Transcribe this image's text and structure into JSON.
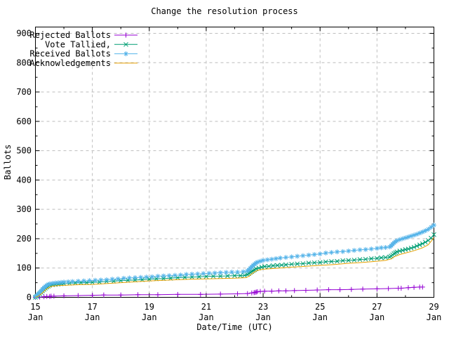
{
  "chart_data": {
    "type": "line",
    "title": "Change the resolution process",
    "xlabel": "Date/Time (UTC)",
    "ylabel": "Ballots",
    "xlim": [
      15,
      29
    ],
    "ylim": [
      0,
      900
    ],
    "grid": true,
    "legend_position": "top-left-inside",
    "grid_color": "#bebebe",
    "axis_color": "#000000",
    "background_color": "#ffffff",
    "x_major_ticks": [
      {
        "x": 15,
        "line1": "15",
        "line2": "Jan"
      },
      {
        "x": 17,
        "line1": "17",
        "line2": "Jan"
      },
      {
        "x": 19,
        "line1": "19",
        "line2": "Jan"
      },
      {
        "x": 21,
        "line1": "21",
        "line2": "Jan"
      },
      {
        "x": 23,
        "line1": "23",
        "line2": "Jan"
      },
      {
        "x": 25,
        "line1": "25",
        "line2": "Jan"
      },
      {
        "x": 27,
        "line1": "27",
        "line2": "Jan"
      },
      {
        "x": 29,
        "line1": "29",
        "line2": "Jan"
      }
    ],
    "x_minor_ticks": [
      16,
      18,
      20,
      22,
      24,
      26,
      28
    ],
    "y_major_ticks": [
      0,
      100,
      200,
      300,
      400,
      500,
      600,
      700,
      800,
      900
    ],
    "y_minor_ticks": [
      50,
      150,
      250,
      350,
      450,
      550,
      650,
      750,
      850
    ],
    "series": [
      {
        "name": "Rejected Ballots",
        "color": "#9400d3",
        "marker": "plus",
        "points": [
          [
            15.0,
            0
          ],
          [
            15.15,
            1
          ],
          [
            15.3,
            2
          ],
          [
            15.4,
            3
          ],
          [
            15.5,
            3
          ],
          [
            15.55,
            4
          ],
          [
            15.65,
            4
          ],
          [
            16.0,
            5
          ],
          [
            16.5,
            6
          ],
          [
            17.0,
            7
          ],
          [
            17.4,
            8
          ],
          [
            18.0,
            8
          ],
          [
            18.6,
            9
          ],
          [
            19.3,
            9
          ],
          [
            20.0,
            10
          ],
          [
            20.8,
            10
          ],
          [
            21.5,
            11
          ],
          [
            22.1,
            12
          ],
          [
            22.45,
            13
          ],
          [
            22.6,
            15
          ],
          [
            22.68,
            16
          ],
          [
            22.72,
            17
          ],
          [
            22.76,
            18
          ],
          [
            22.8,
            19
          ],
          [
            22.9,
            20
          ],
          [
            23.05,
            21
          ],
          [
            23.3,
            21
          ],
          [
            23.55,
            22
          ],
          [
            23.8,
            22
          ],
          [
            24.1,
            23
          ],
          [
            24.5,
            24
          ],
          [
            24.9,
            25
          ],
          [
            25.3,
            26
          ],
          [
            25.7,
            26
          ],
          [
            26.1,
            27
          ],
          [
            26.5,
            28
          ],
          [
            27.0,
            29
          ],
          [
            27.4,
            30
          ],
          [
            27.75,
            31
          ],
          [
            27.85,
            31
          ],
          [
            28.1,
            33
          ],
          [
            28.3,
            34
          ],
          [
            28.5,
            35
          ],
          [
            28.6,
            35
          ]
        ]
      },
      {
        "name": "Vote Tallied,",
        "color": "#009e73",
        "marker": "cross",
        "points": [
          [
            15.0,
            0
          ],
          [
            15.05,
            3
          ],
          [
            15.1,
            7
          ],
          [
            15.15,
            12
          ],
          [
            15.2,
            17
          ],
          [
            15.25,
            22
          ],
          [
            15.3,
            27
          ],
          [
            15.35,
            31
          ],
          [
            15.4,
            35
          ],
          [
            15.45,
            38
          ],
          [
            15.5,
            41
          ],
          [
            15.6,
            43
          ],
          [
            15.7,
            44
          ],
          [
            15.8,
            45
          ],
          [
            15.9,
            46
          ],
          [
            16.0,
            47
          ],
          [
            16.2,
            48
          ],
          [
            16.4,
            49
          ],
          [
            16.6,
            50
          ],
          [
            16.8,
            50
          ],
          [
            17.0,
            51
          ],
          [
            17.25,
            52
          ],
          [
            17.5,
            54
          ],
          [
            17.75,
            55
          ],
          [
            18.0,
            57
          ],
          [
            18.25,
            58
          ],
          [
            18.5,
            59
          ],
          [
            18.75,
            60
          ],
          [
            19.0,
            62
          ],
          [
            19.25,
            63
          ],
          [
            19.5,
            64
          ],
          [
            19.75,
            65
          ],
          [
            20.0,
            67
          ],
          [
            20.25,
            68
          ],
          [
            20.5,
            69
          ],
          [
            20.75,
            70
          ],
          [
            21.0,
            71
          ],
          [
            21.25,
            72
          ],
          [
            21.5,
            72
          ],
          [
            21.75,
            73
          ],
          [
            22.0,
            74
          ],
          [
            22.2,
            74
          ],
          [
            22.35,
            75
          ],
          [
            22.45,
            78
          ],
          [
            22.5,
            81
          ],
          [
            22.55,
            85
          ],
          [
            22.6,
            88
          ],
          [
            22.65,
            91
          ],
          [
            22.7,
            94
          ],
          [
            22.75,
            97
          ],
          [
            22.85,
            100
          ],
          [
            22.95,
            103
          ],
          [
            23.05,
            105
          ],
          [
            23.2,
            106
          ],
          [
            23.35,
            108
          ],
          [
            23.5,
            109
          ],
          [
            23.65,
            110
          ],
          [
            23.8,
            111
          ],
          [
            24.0,
            113
          ],
          [
            24.2,
            114
          ],
          [
            24.4,
            115
          ],
          [
            24.6,
            117
          ],
          [
            24.8,
            118
          ],
          [
            25.0,
            119
          ],
          [
            25.2,
            121
          ],
          [
            25.4,
            122
          ],
          [
            25.6,
            123
          ],
          [
            25.8,
            125
          ],
          [
            26.0,
            126
          ],
          [
            26.2,
            127
          ],
          [
            26.4,
            129
          ],
          [
            26.6,
            130
          ],
          [
            26.8,
            132
          ],
          [
            27.0,
            133
          ],
          [
            27.15,
            135
          ],
          [
            27.3,
            136
          ],
          [
            27.45,
            138
          ],
          [
            27.5,
            141
          ],
          [
            27.55,
            145
          ],
          [
            27.6,
            149
          ],
          [
            27.65,
            152
          ],
          [
            27.7,
            155
          ],
          [
            27.8,
            158
          ],
          [
            27.9,
            160
          ],
          [
            28.0,
            163
          ],
          [
            28.1,
            165
          ],
          [
            28.2,
            168
          ],
          [
            28.3,
            171
          ],
          [
            28.4,
            175
          ],
          [
            28.5,
            179
          ],
          [
            28.6,
            183
          ],
          [
            28.7,
            188
          ],
          [
            28.8,
            194
          ],
          [
            28.9,
            202
          ],
          [
            29.0,
            214
          ]
        ]
      },
      {
        "name": "Received Ballots",
        "color": "#56b4e9",
        "marker": "asterisk",
        "points": [
          [
            15.0,
            2
          ],
          [
            15.05,
            6
          ],
          [
            15.1,
            11
          ],
          [
            15.15,
            16
          ],
          [
            15.2,
            22
          ],
          [
            15.25,
            28
          ],
          [
            15.3,
            33
          ],
          [
            15.35,
            37
          ],
          [
            15.4,
            41
          ],
          [
            15.45,
            44
          ],
          [
            15.5,
            46
          ],
          [
            15.6,
            48
          ],
          [
            15.7,
            49
          ],
          [
            15.8,
            50
          ],
          [
            15.9,
            51
          ],
          [
            16.0,
            52
          ],
          [
            16.15,
            53
          ],
          [
            16.3,
            54
          ],
          [
            16.5,
            55
          ],
          [
            16.7,
            56
          ],
          [
            16.9,
            57
          ],
          [
            17.1,
            58
          ],
          [
            17.3,
            59
          ],
          [
            17.5,
            60
          ],
          [
            17.7,
            62
          ],
          [
            17.9,
            63
          ],
          [
            18.1,
            65
          ],
          [
            18.3,
            66
          ],
          [
            18.5,
            67
          ],
          [
            18.7,
            68
          ],
          [
            18.9,
            69
          ],
          [
            19.1,
            70
          ],
          [
            19.3,
            72
          ],
          [
            19.5,
            73
          ],
          [
            19.7,
            74
          ],
          [
            19.9,
            75
          ],
          [
            20.1,
            76
          ],
          [
            20.3,
            78
          ],
          [
            20.5,
            79
          ],
          [
            20.7,
            80
          ],
          [
            20.9,
            81
          ],
          [
            21.1,
            82
          ],
          [
            21.3,
            83
          ],
          [
            21.5,
            84
          ],
          [
            21.7,
            85
          ],
          [
            21.9,
            86
          ],
          [
            22.1,
            86
          ],
          [
            22.3,
            87
          ],
          [
            22.45,
            90
          ],
          [
            22.5,
            94
          ],
          [
            22.55,
            99
          ],
          [
            22.6,
            104
          ],
          [
            22.65,
            109
          ],
          [
            22.7,
            113
          ],
          [
            22.75,
            117
          ],
          [
            22.8,
            120
          ],
          [
            22.9,
            123
          ],
          [
            23.0,
            126
          ],
          [
            23.15,
            128
          ],
          [
            23.3,
            130
          ],
          [
            23.45,
            132
          ],
          [
            23.6,
            134
          ],
          [
            23.8,
            136
          ],
          [
            24.0,
            138
          ],
          [
            24.2,
            140
          ],
          [
            24.4,
            142
          ],
          [
            24.6,
            144
          ],
          [
            24.8,
            146
          ],
          [
            25.0,
            148
          ],
          [
            25.2,
            151
          ],
          [
            25.4,
            153
          ],
          [
            25.6,
            155
          ],
          [
            25.8,
            156
          ],
          [
            26.0,
            158
          ],
          [
            26.2,
            160
          ],
          [
            26.4,
            162
          ],
          [
            26.6,
            163
          ],
          [
            26.8,
            165
          ],
          [
            27.0,
            167
          ],
          [
            27.15,
            169
          ],
          [
            27.3,
            170
          ],
          [
            27.45,
            172
          ],
          [
            27.5,
            176
          ],
          [
            27.55,
            181
          ],
          [
            27.6,
            186
          ],
          [
            27.65,
            190
          ],
          [
            27.7,
            193
          ],
          [
            27.8,
            197
          ],
          [
            27.9,
            200
          ],
          [
            28.0,
            203
          ],
          [
            28.1,
            206
          ],
          [
            28.2,
            209
          ],
          [
            28.3,
            212
          ],
          [
            28.4,
            215
          ],
          [
            28.5,
            219
          ],
          [
            28.6,
            223
          ],
          [
            28.7,
            227
          ],
          [
            28.8,
            232
          ],
          [
            28.9,
            239
          ],
          [
            29.0,
            246
          ]
        ]
      },
      {
        "name": "Acknowledgements",
        "color": "#e69f00",
        "marker": "none",
        "points": [
          [
            15.0,
            0
          ],
          [
            15.1,
            4
          ],
          [
            15.2,
            11
          ],
          [
            15.3,
            20
          ],
          [
            15.4,
            29
          ],
          [
            15.5,
            35
          ],
          [
            15.6,
            38
          ],
          [
            15.8,
            40
          ],
          [
            16.0,
            41
          ],
          [
            16.5,
            43
          ],
          [
            17.0,
            44
          ],
          [
            17.5,
            47
          ],
          [
            18.0,
            50
          ],
          [
            18.5,
            53
          ],
          [
            19.0,
            56
          ],
          [
            19.5,
            58
          ],
          [
            20.0,
            60
          ],
          [
            20.5,
            62
          ],
          [
            21.0,
            63
          ],
          [
            21.5,
            64
          ],
          [
            22.0,
            65
          ],
          [
            22.4,
            67
          ],
          [
            22.5,
            72
          ],
          [
            22.6,
            80
          ],
          [
            22.7,
            87
          ],
          [
            22.8,
            92
          ],
          [
            23.0,
            96
          ],
          [
            23.3,
            98
          ],
          [
            23.6,
            100
          ],
          [
            24.0,
            103
          ],
          [
            24.5,
            106
          ],
          [
            25.0,
            109
          ],
          [
            25.5,
            112
          ],
          [
            26.0,
            116
          ],
          [
            26.5,
            119
          ],
          [
            27.0,
            123
          ],
          [
            27.3,
            126
          ],
          [
            27.5,
            131
          ],
          [
            27.6,
            138
          ],
          [
            27.7,
            142
          ],
          [
            27.8,
            146
          ],
          [
            28.0,
            151
          ],
          [
            28.2,
            156
          ],
          [
            28.4,
            162
          ],
          [
            28.6,
            169
          ],
          [
            28.8,
            179
          ],
          [
            29.0,
            203
          ]
        ]
      }
    ]
  }
}
